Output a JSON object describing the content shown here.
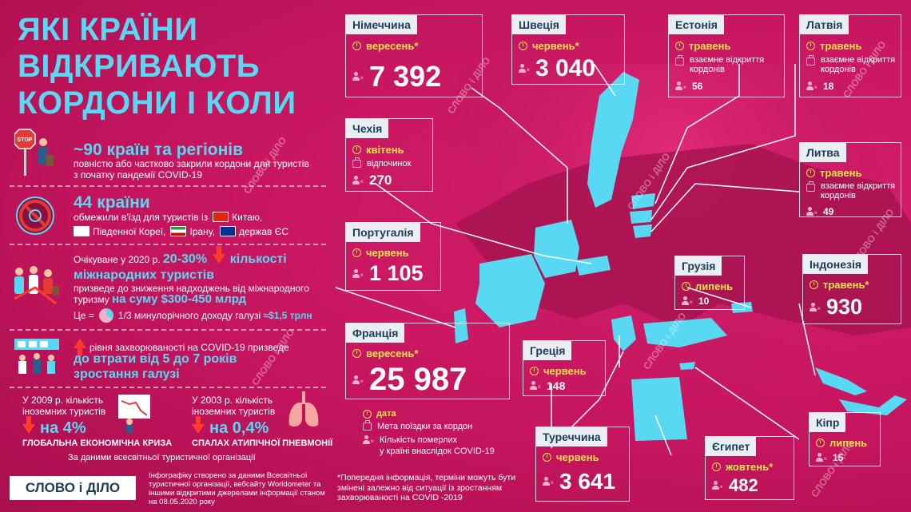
{
  "title_lines": [
    "ЯКІ КРАЇНИ",
    "ВІДКРИВАЮТЬ",
    "КОРДОНИ І КОЛИ"
  ],
  "facts": {
    "closed_count": "~90 країн та регіонів",
    "closed_desc": "повністю або частково закрили кордони для туристів з початку пандемії COVID-19",
    "restrict_count": "44 країни",
    "restrict_desc": "обмежили в'їзд для туристів із",
    "restrict_china": "Китаю,",
    "restrict_korea": "Південної Кореї,",
    "restrict_iran": "Ірану,",
    "restrict_eu": "держав ЄС",
    "expected_prefix": "Очікуване у 2020 р.",
    "expected_pct": "20-30%",
    "expected_of": "кількості",
    "expected_tourists": "міжнародних туристів",
    "expected_line2": "призведе до зниження надходжень від міжнародного",
    "expected_line3": "туризму",
    "expected_sum": "на суму $300-450 млрд",
    "ce_prefix": "Це =",
    "ce_frac": "1/3",
    "ce_text": "минулорічного доходу галузі",
    "ce_total": "≈$1,5 трлн",
    "growth_text": "рівня захворюваності на COVID-19 призведе",
    "growth_bold1": "до втрати від 5 до 7 років",
    "growth_bold2": "зростання галузі",
    "h2009_line1": "У 2009 р. кількість",
    "h2009_line2": "іноземних туристів",
    "h2009_pct": "на 4%",
    "h2009_cause": "ГЛОБАЛЬНА ЕКОНОМІЧНА КРИЗА",
    "h2003_line1": "У 2003 р. кількість",
    "h2003_line2": "іноземних туристів",
    "h2003_pct": "на 0,4%",
    "h2003_cause": "СПАЛАХ АТИПІЧНОЇ ПНЕВМОНІЇ",
    "source_note": "За даними всесвітньої туристичної організації"
  },
  "footer": {
    "logo": "СЛОВО і ДІЛО",
    "credits": "Інфографіку створено за даними Всесвітньої туристичної організації, вебсайту Worldometer та іншими відкритими джерелами інформації станом на 08.05.2020 року",
    "disclaimer": "*Попередня інформація, терміни можуть бути змінені залежно від ситуації із зростанням захворюваності на COVID -2019"
  },
  "legend": {
    "date": "дата",
    "purpose": "Мета поїздки за кордон",
    "deaths_line1": "Кількість померлих",
    "deaths_line2": "у країні внаслідок COVID-19"
  },
  "countries": {
    "germany": {
      "name": "Німеччина",
      "date": "вересень*",
      "deaths": "7 392"
    },
    "sweden": {
      "name": "Швеція",
      "date": "червень*",
      "deaths": "3 040"
    },
    "estonia": {
      "name": "Естонія",
      "date": "травень",
      "purpose": "взаємне відкриття кордонів",
      "deaths": "56"
    },
    "latvia": {
      "name": "Латвія",
      "date": "травень",
      "purpose": "взаємне відкриття кордонів",
      "deaths": "18"
    },
    "czech": {
      "name": "Чехія",
      "date": "квітень",
      "purpose": "відпочинок",
      "deaths": "270"
    },
    "lithuania": {
      "name": "Литва",
      "date": "травень",
      "purpose": "взаємне відкриття кордонів",
      "deaths": "49"
    },
    "portugal": {
      "name": "Португалія",
      "date": "червень",
      "deaths": "1 105"
    },
    "georgia": {
      "name": "Грузія",
      "date": "липень",
      "deaths": "10"
    },
    "indonesia": {
      "name": "Індонезія",
      "date": "травень*",
      "deaths": "930"
    },
    "france": {
      "name": "Франція",
      "date": "вересень*",
      "deaths": "25 987"
    },
    "greece": {
      "name": "Греція",
      "date": "червень",
      "deaths": "148"
    },
    "turkey": {
      "name": "Туреччина",
      "date": "червень",
      "deaths": "3 641"
    },
    "egypt": {
      "name": "Єгипет",
      "date": "жовтень*",
      "deaths": "482"
    },
    "cyprus": {
      "name": "Кіпр",
      "date": "липень",
      "deaths": "15"
    }
  },
  "watermark": "СЛОВО і ДІЛО",
  "colors": {
    "background": "#c5155e",
    "accent_cyan": "#59d8f3",
    "accent_yellow": "#ffe34a",
    "arrow_red": "#ff3b2f",
    "header_bg": "#e9eef2"
  }
}
